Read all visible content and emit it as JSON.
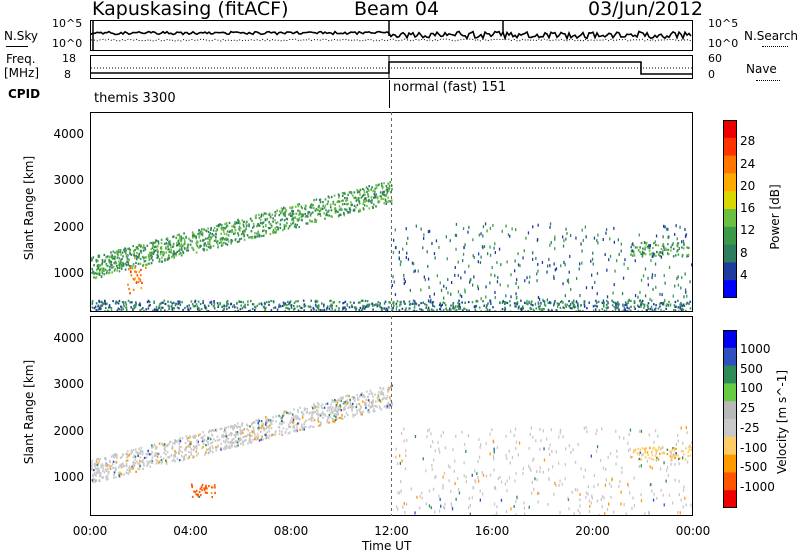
{
  "header": {
    "station": "Kapuskasing (fitACF)",
    "beam": "Beam 04",
    "date": "03/Jun/2012"
  },
  "noise_panel": {
    "left_label": "N.Sky",
    "right_label": "N.Search",
    "left_ticks": [
      "10^5",
      "10^0"
    ],
    "right_ticks": [
      "10^5",
      "10^0"
    ]
  },
  "freq_panel": {
    "left_label_1": "Freq.",
    "left_label_2": "[MHz]",
    "right_label": "Nave",
    "left_ticks": [
      "18",
      "8"
    ],
    "right_ticks": [
      "60",
      "0"
    ]
  },
  "cpid": {
    "label": "CPID",
    "segments": [
      {
        "name": "themis 3300",
        "start_hour": 0
      },
      {
        "name": "normal (fast) 151",
        "start_hour": 12
      }
    ]
  },
  "colors": {
    "power_scale": [
      "#0000ff",
      "#1e3ca0",
      "#2e7d5e",
      "#3a9a4a",
      "#6cc040",
      "#d8d800",
      "#ffaa00",
      "#ff7700",
      "#ff3300",
      "#ee0000"
    ],
    "velocity_scale": [
      "#ee0000",
      "#ff5500",
      "#ff9900",
      "#ffcc66",
      "#c8c8c8",
      "#b8b8b8",
      "#66cc44",
      "#2e8b57",
      "#3050c0",
      "#0000ee"
    ]
  },
  "chart_data": [
    {
      "type": "heatmap",
      "title": "",
      "xlabel": "Time UT",
      "ylabel": "Slant Range [km]",
      "colorbar_label": "Power [dB]",
      "colorbar_ticks": [
        "28",
        "24",
        "20",
        "16",
        "12",
        "8",
        "4"
      ],
      "x_ticks": [
        "00:00",
        "04:00",
        "08:00",
        "12:00",
        "16:00",
        "20:00",
        "00:00"
      ],
      "y_ticks": [
        "4000",
        "3000",
        "2000",
        "1000"
      ],
      "xlim_hours": [
        0,
        24
      ],
      "ylim_km": [
        180,
        4500
      ],
      "features": [
        {
          "desc": "main echo band",
          "start_hour": 0.0,
          "end_hour": 12.0,
          "range_start_km": 1100,
          "range_end_km": 3000,
          "typical_db": 8
        },
        {
          "desc": "strong patch",
          "start_hour": 1.4,
          "end_hour": 2.2,
          "range_start_km": 600,
          "range_end_km": 1200,
          "typical_db": 22
        },
        {
          "desc": "near-range scatter",
          "start_hour": 0.0,
          "end_hour": 24.0,
          "range_start_km": 200,
          "range_end_km": 450,
          "typical_db": 6
        },
        {
          "desc": "evening band",
          "start_hour": 21.5,
          "end_hour": 24.0,
          "range_start_km": 1400,
          "range_end_km": 1700,
          "typical_db": 8
        }
      ]
    },
    {
      "type": "heatmap",
      "title": "",
      "xlabel": "Time UT",
      "ylabel": "Slant Range [km]",
      "colorbar_label": "Velocity [m s^-1]",
      "colorbar_ticks": [
        "1000",
        "500",
        "100",
        "25",
        "-25",
        "-100",
        "-500",
        "-1000"
      ],
      "x_ticks": [
        "00:00",
        "04:00",
        "08:00",
        "12:00",
        "16:00",
        "20:00",
        "00:00"
      ],
      "y_ticks": [
        "4000",
        "3000",
        "2000",
        "1000"
      ],
      "xlim_hours": [
        0,
        24
      ],
      "ylim_km": [
        180,
        4500
      ],
      "features": [
        {
          "desc": "low-velocity band",
          "start_hour": 0.0,
          "end_hour": 12.0,
          "range_start_km": 1100,
          "range_end_km": 3000,
          "typical_ms": 0
        },
        {
          "desc": "negative velocity patch",
          "start_hour": 4.0,
          "end_hour": 5.0,
          "range_start_km": 600,
          "range_end_km": 900,
          "typical_ms": -300
        },
        {
          "desc": "evening band",
          "start_hour": 21.5,
          "end_hour": 24.0,
          "range_start_km": 1400,
          "range_end_km": 1700,
          "typical_ms": -60
        }
      ]
    }
  ]
}
